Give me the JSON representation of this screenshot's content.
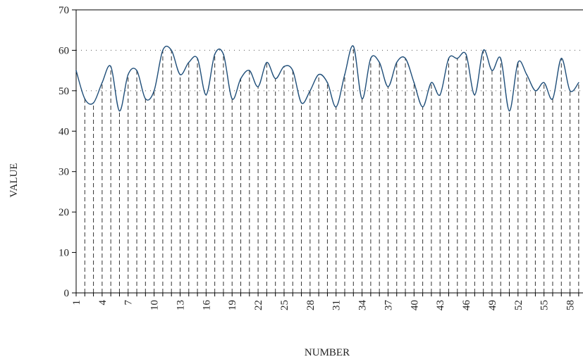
{
  "chart_data": {
    "type": "line",
    "xlabel": "NUMBER",
    "ylabel": "VALUE",
    "xlim": [
      1,
      59.5
    ],
    "ylim": [
      0,
      70
    ],
    "yticks": [
      0,
      10,
      20,
      30,
      40,
      50,
      60,
      70
    ],
    "xticks": [
      1,
      4,
      7,
      10,
      13,
      16,
      19,
      22,
      25,
      28,
      31,
      34,
      37,
      40,
      43,
      46,
      49,
      52,
      55,
      58
    ],
    "reference_lines": [
      50,
      60
    ],
    "grid": "dashed vertical drop lines at each data point",
    "line_color": "#1f4e79",
    "x": [
      1,
      2,
      3,
      4,
      5,
      6,
      7,
      8,
      9,
      10,
      11,
      12,
      13,
      14,
      15,
      16,
      17,
      18,
      19,
      20,
      21,
      22,
      23,
      24,
      25,
      26,
      27,
      28,
      29,
      30,
      31,
      32,
      33,
      34,
      35,
      36,
      37,
      38,
      39,
      40,
      41,
      42,
      43,
      44,
      45,
      46,
      47,
      48,
      49,
      50,
      51,
      52,
      53,
      54,
      55,
      56,
      57,
      58,
      59
    ],
    "values": [
      55,
      48,
      47,
      52,
      56,
      45,
      54,
      55,
      48,
      50,
      60,
      60,
      54,
      57,
      58,
      49,
      59,
      59,
      48,
      53,
      55,
      51,
      57,
      53,
      56,
      55,
      47,
      50,
      54,
      52,
      46,
      54,
      61,
      48,
      58,
      57,
      51,
      57,
      58,
      52,
      46,
      52,
      49,
      58,
      58,
      59,
      49,
      60,
      55,
      58,
      45,
      57,
      54,
      50,
      52,
      48,
      58,
      50,
      52
    ]
  }
}
